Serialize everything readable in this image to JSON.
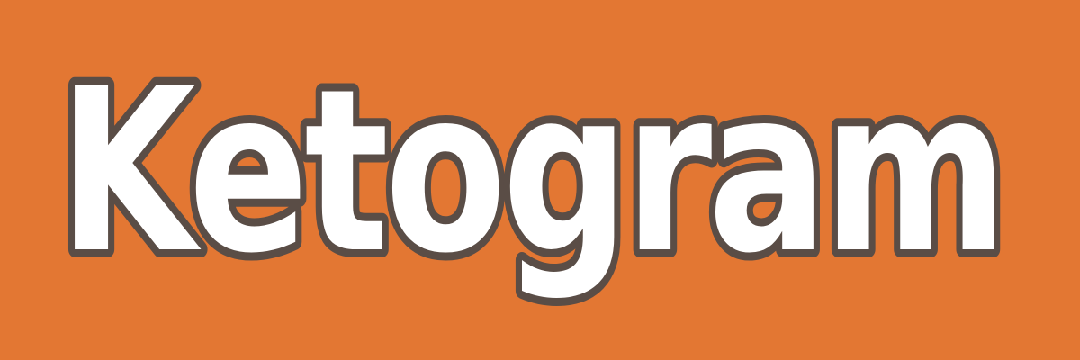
{
  "banner": {
    "background_color": "#E37733",
    "logo": {
      "text": "Ketogram",
      "fill_color": "#FFFFFF",
      "outline_color": "#5A4D46"
    }
  }
}
